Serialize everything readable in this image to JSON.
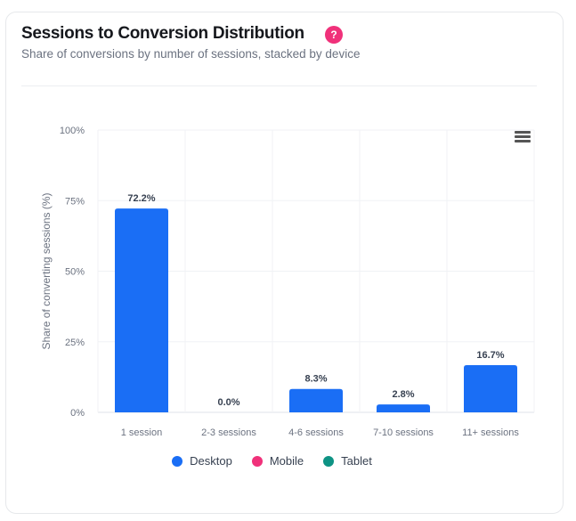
{
  "header": {
    "title": "Sessions to Conversion Distribution",
    "help_icon": "?",
    "subtitle": "Share of conversions by number of sessions, stacked by device"
  },
  "chart_data": {
    "type": "bar",
    "stacked": true,
    "categories": [
      "1 session",
      "2-3 sessions",
      "4-6 sessions",
      "7-10 sessions",
      "11+ sessions"
    ],
    "series": [
      {
        "name": "Desktop",
        "color": "#1a6ef5",
        "values": [
          72.2,
          0.0,
          8.3,
          2.8,
          16.7
        ]
      },
      {
        "name": "Mobile",
        "color": "#f0317a",
        "values": [
          0,
          0,
          0,
          0,
          0
        ]
      },
      {
        "name": "Tablet",
        "color": "#0e9384",
        "values": [
          0,
          0,
          0,
          0,
          0
        ]
      }
    ],
    "data_labels": [
      "72.2%",
      "0.0%",
      "8.3%",
      "2.8%",
      "16.7%"
    ],
    "ylabel": "Share of converting sessions (%)",
    "xlabel": "",
    "ylim": [
      0,
      100
    ],
    "yticks": [
      0,
      25,
      50,
      75,
      100
    ],
    "ytick_labels": [
      "0%",
      "25%",
      "50%",
      "75%",
      "100%"
    ],
    "grid": true,
    "legend_position": "bottom"
  }
}
